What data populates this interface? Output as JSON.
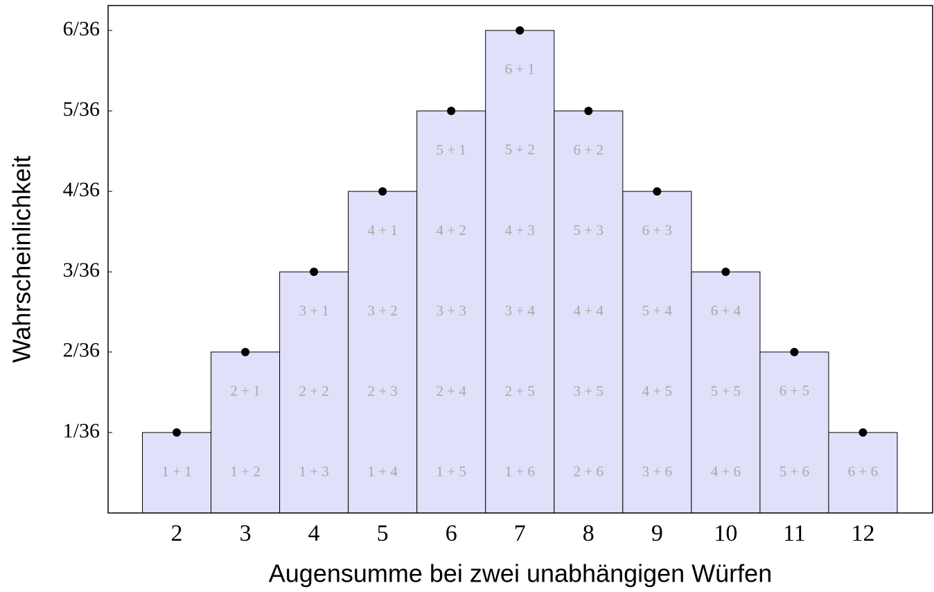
{
  "chart_data": {
    "type": "bar",
    "x_label": "Augensumme bei zwei unabhängigen Würfen",
    "y_label": "Wahrscheinlichkeit",
    "categories": [
      "2",
      "3",
      "4",
      "5",
      "6",
      "7",
      "8",
      "9",
      "10",
      "11",
      "12"
    ],
    "values": [
      0.0278,
      0.0556,
      0.0833,
      0.1111,
      0.1389,
      0.1667,
      0.1389,
      0.1111,
      0.0833,
      0.0556,
      0.0278
    ],
    "combinations": [
      [
        "1 + 1"
      ],
      [
        "1 + 2",
        "2 + 1"
      ],
      [
        "1 + 3",
        "2 + 2",
        "3 + 1"
      ],
      [
        "1 + 4",
        "2 + 3",
        "3 + 2",
        "4 + 1"
      ],
      [
        "1 + 5",
        "2 + 4",
        "3 + 3",
        "4 + 2",
        "5 + 1"
      ],
      [
        "1 + 6",
        "2 + 5",
        "3 + 4",
        "4 + 3",
        "5 + 2",
        "6 + 1"
      ],
      [
        "2 + 6",
        "3 + 5",
        "4 + 4",
        "5 + 3",
        "6 + 2"
      ],
      [
        "3 + 6",
        "4 + 5",
        "5 + 4",
        "6 + 3"
      ],
      [
        "4 + 6",
        "5 + 5",
        "6 + 4"
      ],
      [
        "5 + 6",
        "6 + 5"
      ],
      [
        "6 + 6"
      ]
    ],
    "color": "#e0e0fa",
    "marker_color": "#000000",
    "ylim": [
      0,
      0.1753
    ],
    "yticks": [
      {
        "value": 0.0278,
        "label": "1/36"
      },
      {
        "value": 0.0556,
        "label": "2/36"
      },
      {
        "value": 0.0833,
        "label": "3/36"
      },
      {
        "value": 0.1111,
        "label": "4/36"
      },
      {
        "value": 0.1389,
        "label": "5/36"
      },
      {
        "value": 0.1667,
        "label": "6/36"
      }
    ],
    "grid": false
  }
}
